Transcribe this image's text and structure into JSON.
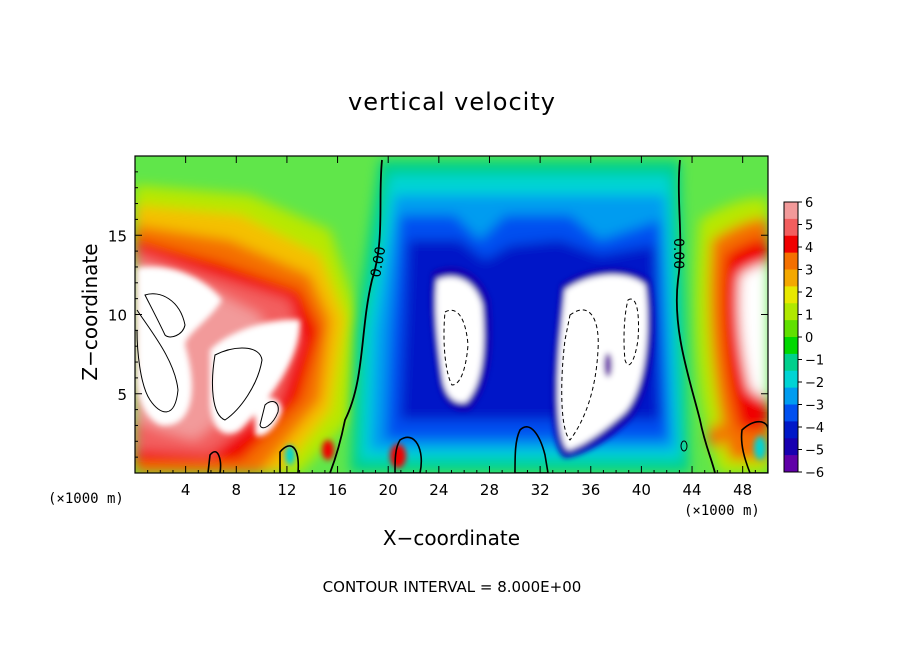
{
  "chart_data": {
    "type": "heatmap",
    "title": "vertical velocity",
    "xlabel": "X−coordinate",
    "ylabel": "Z−coordinate",
    "x_unit_left": "(×1000 m)",
    "x_unit_right": "(×1000 m)",
    "footer": "CONTOUR INTERVAL = 8.000E+00",
    "xlim": [
      0,
      50
    ],
    "ylim": [
      0,
      20
    ],
    "x_ticks": [
      4,
      8,
      12,
      16,
      20,
      24,
      28,
      32,
      36,
      40,
      44,
      48
    ],
    "x_tick_labels": [
      "4",
      "8",
      "12",
      "16",
      "20",
      "24",
      "28",
      "32",
      "36",
      "40",
      "44",
      "48"
    ],
    "y_ticks": [
      5,
      10,
      15
    ],
    "y_tick_labels": [
      "5",
      "10",
      "15"
    ],
    "colorbar": {
      "min": -6,
      "max": 6,
      "ticks": [
        6,
        5,
        4,
        3,
        2,
        1,
        0,
        -1,
        -2,
        -3,
        -4,
        -5,
        -6
      ],
      "tick_labels": [
        "6",
        "5",
        "4",
        "3",
        "2",
        "1",
        "0",
        "−1",
        "−2",
        "−3",
        "−4",
        "−5",
        "−6"
      ],
      "colors": [
        "#f29a9a",
        "#f25e5e",
        "#f00000",
        "#f47000",
        "#f4a800",
        "#e8e800",
        "#b0e800",
        "#60e000",
        "#00d800",
        "#00d08c",
        "#00d4d4",
        "#009cf0",
        "#0050f0",
        "#0018c8",
        "#1800b0",
        "#6000a8"
      ]
    },
    "contour_label": "0.00",
    "background_color": "#60e64a"
  }
}
